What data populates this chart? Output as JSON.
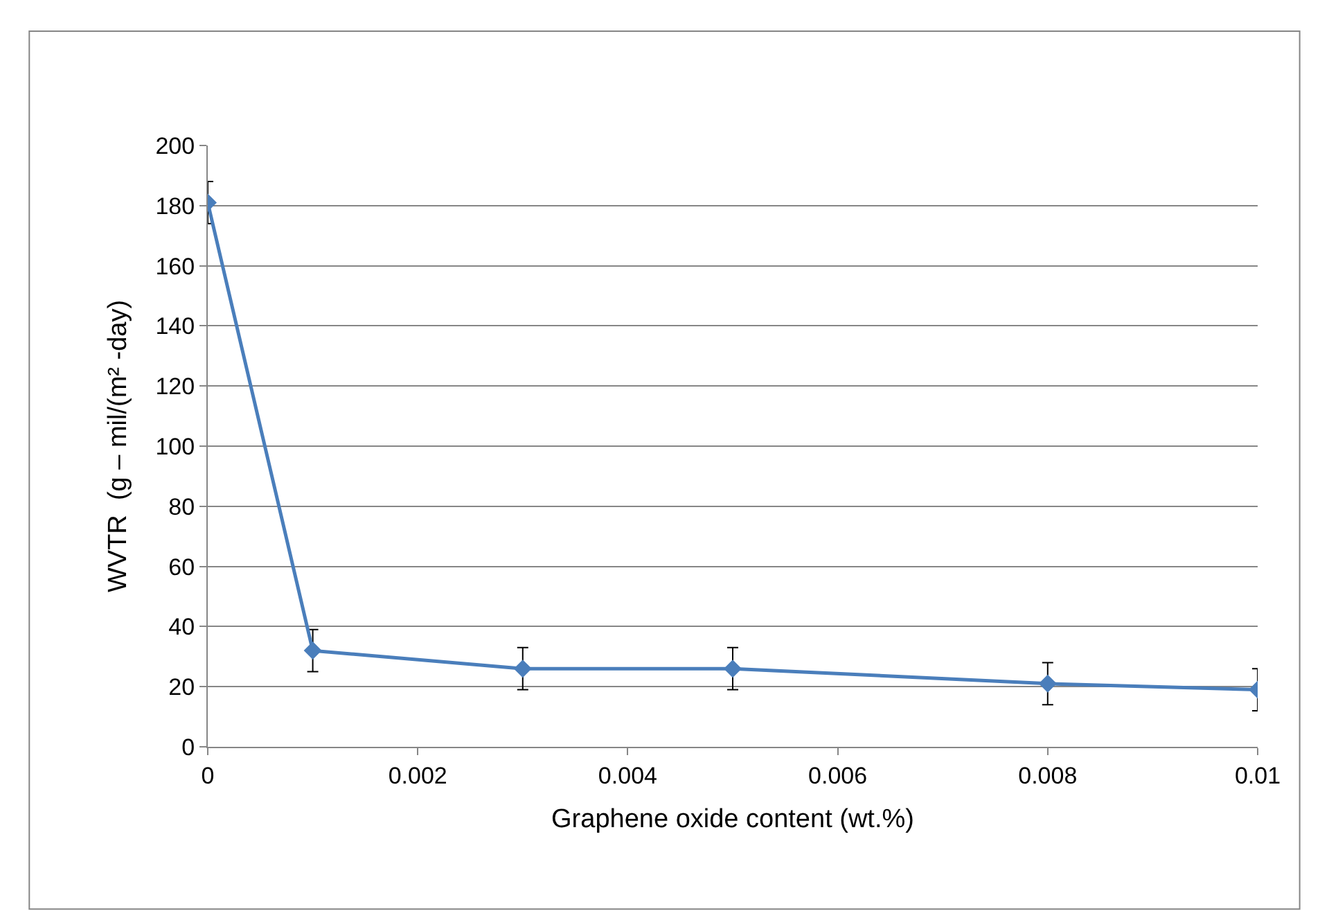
{
  "chart_data": {
    "type": "line",
    "xlabel": "Graphene oxide content (wt.%)",
    "ylabel": "WVTR  (g – mil/(m² -day)",
    "x": [
      0,
      0.001,
      0.003,
      0.005,
      0.008,
      0.01
    ],
    "series": [
      {
        "color": "#4a7ebb",
        "values": [
          181,
          32,
          26,
          26,
          21,
          19
        ],
        "errors": [
          7,
          7,
          7,
          7,
          7,
          7
        ]
      }
    ],
    "xlim": [
      0,
      0.01
    ],
    "xticks": [
      0,
      0.002,
      0.004,
      0.006,
      0.008,
      0.01
    ],
    "ylim": [
      0,
      200
    ],
    "yticks": [
      0,
      20,
      40,
      60,
      80,
      100,
      120,
      140,
      160,
      180,
      200
    ],
    "grid": "y",
    "marker": "diamond",
    "line_style": "solid"
  }
}
